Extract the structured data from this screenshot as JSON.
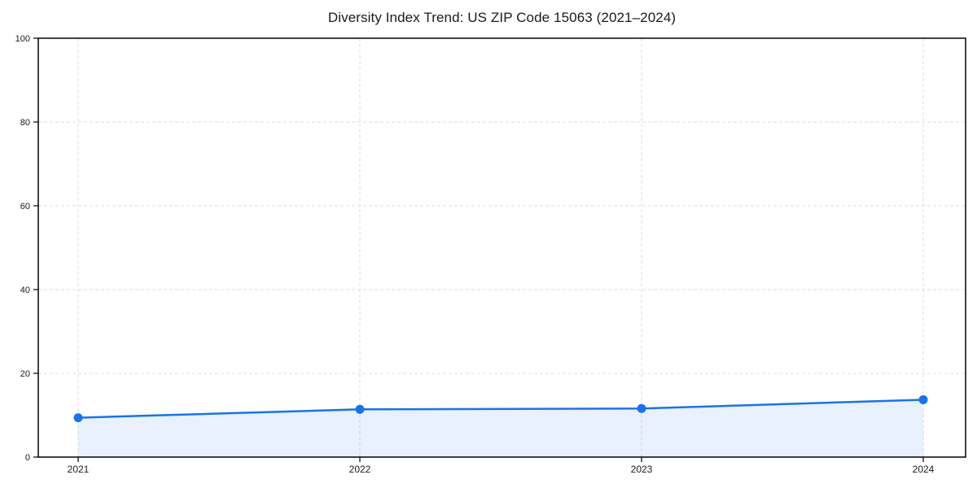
{
  "chart_data": {
    "type": "area",
    "title": "Diversity Index Trend: US ZIP Code 15063 (2021–2024)",
    "categories": [
      "2021",
      "2022",
      "2023",
      "2024"
    ],
    "values": [
      9.4,
      11.4,
      11.6,
      13.7
    ],
    "series": [
      {
        "name": "Diversity Index",
        "values": [
          9.4,
          11.4,
          11.6,
          13.7
        ]
      }
    ],
    "xlabel": "",
    "ylabel": "",
    "ylim": [
      0,
      100
    ],
    "yticks": [
      0,
      20,
      40,
      60,
      80,
      100
    ],
    "grid": "dashed-both-axes",
    "legend": "none",
    "marker": "circle",
    "colors": {
      "line": "#1a73e8",
      "marker": "#1a73e8",
      "fill": "#1a73e8",
      "fill_opacity": "0.10",
      "grid": "#dedede",
      "spine": "#000000",
      "title_text": "#1a1a1a",
      "tick_text": "#1a1a1a"
    }
  }
}
